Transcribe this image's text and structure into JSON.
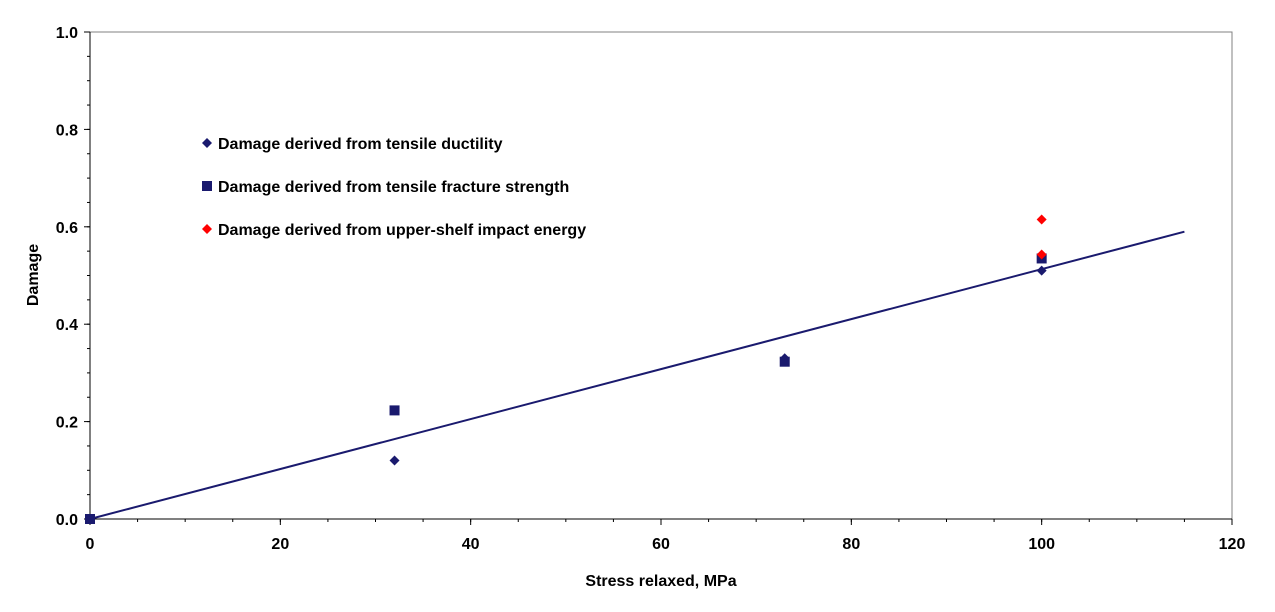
{
  "chart_data": {
    "type": "scatter",
    "xlabel": "Stress relaxed, MPa",
    "ylabel": "Damage",
    "xlim": [
      0,
      120
    ],
    "ylim": [
      0,
      1.0
    ],
    "x_ticks": [
      0,
      20,
      40,
      60,
      80,
      100,
      120
    ],
    "y_ticks": [
      0.0,
      0.2,
      0.4,
      0.6,
      0.8,
      1.0
    ],
    "x_tick_labels": [
      "0",
      "20",
      "40",
      "60",
      "80",
      "100",
      "120"
    ],
    "y_tick_labels": [
      "0.0",
      "0.2",
      "0.4",
      "0.6",
      "0.8",
      "1.0"
    ],
    "grid": false,
    "legend_position": "upper-left",
    "series": [
      {
        "name": "Damage derived from tensile ductility",
        "marker": "diamond",
        "color": "#1a1a6e",
        "points": [
          [
            0,
            0.0
          ],
          [
            32,
            0.12
          ],
          [
            73,
            0.33
          ],
          [
            100,
            0.51
          ]
        ]
      },
      {
        "name": "Damage derived from tensile fracture strength",
        "marker": "square",
        "color": "#1a1a6e",
        "points": [
          [
            0,
            0.0
          ],
          [
            32,
            0.223
          ],
          [
            73,
            0.323
          ],
          [
            100,
            0.535
          ]
        ]
      },
      {
        "name": "Damage derived from upper-shelf impact energy",
        "marker": "diamond",
        "color": "#ff0000",
        "points": [
          [
            100,
            0.615
          ],
          [
            100,
            0.543
          ]
        ]
      }
    ],
    "trendline": {
      "color": "#1a1a6e",
      "points": [
        [
          0,
          0.0
        ],
        [
          115,
          0.59
        ]
      ]
    }
  }
}
